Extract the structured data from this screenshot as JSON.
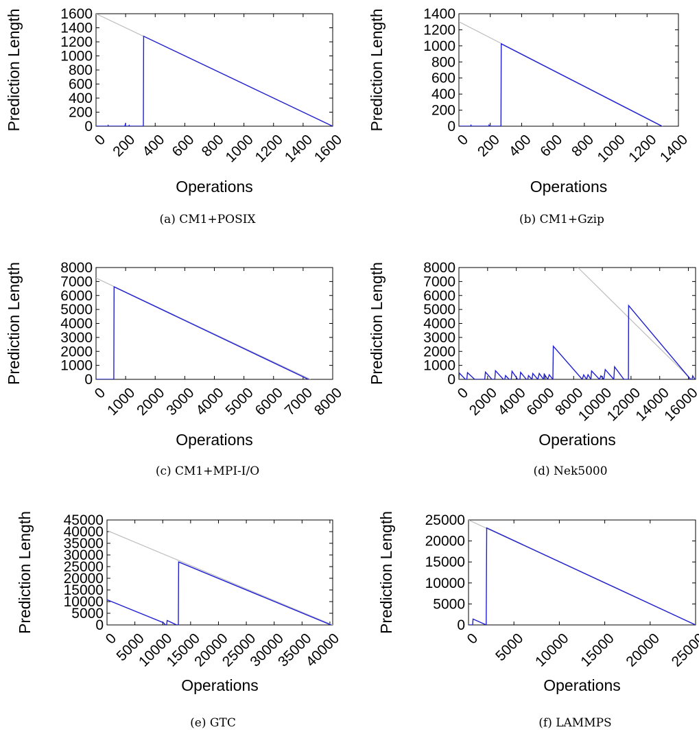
{
  "chart_data": [
    {
      "id": "a",
      "type": "line",
      "caption": "(a)  CM1+POSIX",
      "xlabel": "Operations",
      "ylabel": "Prediction Length",
      "xlim": [
        0,
        1600
      ],
      "ylim": [
        0,
        1600
      ],
      "xticks": [
        0,
        200,
        400,
        600,
        800,
        1000,
        1200,
        1400,
        1600
      ],
      "yticks": [
        0,
        200,
        400,
        600,
        800,
        1000,
        1200,
        1400,
        1600
      ],
      "colors": {
        "ideal": "#bdbdbd",
        "predicted": "#1f1fd2"
      },
      "series": [
        {
          "role": "ideal",
          "points": [
            [
              0,
              1600
            ],
            [
              1600,
              0
            ]
          ]
        },
        {
          "role": "predicted",
          "points": [
            [
              0,
              0
            ],
            [
              80,
              0
            ],
            [
              82,
              12
            ],
            [
              86,
              0
            ],
            [
              195,
              0
            ],
            [
              197,
              20
            ],
            [
              200,
              0
            ],
            [
              222,
              0
            ],
            [
              224,
              12
            ],
            [
              228,
              0
            ],
            [
              320,
              0
            ],
            [
              322,
              1280
            ],
            [
              1600,
              0
            ]
          ]
        }
      ]
    },
    {
      "id": "b",
      "type": "line",
      "caption": "(b)  CM1+Gzip",
      "xlabel": "Operations",
      "ylabel": "Prediction Length",
      "xlim": [
        0,
        1400
      ],
      "ylim": [
        0,
        1400
      ],
      "xticks": [
        0,
        200,
        400,
        600,
        800,
        1000,
        1200,
        1400
      ],
      "yticks": [
        0,
        200,
        400,
        600,
        800,
        1000,
        1200,
        1400
      ],
      "colors": {
        "ideal": "#bdbdbd",
        "predicted": "#1f1fd2"
      },
      "series": [
        {
          "role": "ideal",
          "points": [
            [
              0,
              1300
            ],
            [
              1300,
              0
            ]
          ]
        },
        {
          "role": "predicted",
          "points": [
            [
              0,
              0
            ],
            [
              75,
              0
            ],
            [
              77,
              12
            ],
            [
              80,
              0
            ],
            [
              190,
              0
            ],
            [
              192,
              14
            ],
            [
              195,
              0
            ],
            [
              268,
              0
            ],
            [
              270,
              1025
            ],
            [
              1295,
              0
            ]
          ]
        }
      ]
    },
    {
      "id": "c",
      "type": "line",
      "caption": "(c)  CM1+MPI-I/O",
      "xlabel": "Operations",
      "ylabel": "Prediction Length",
      "xlim": [
        0,
        8000
      ],
      "ylim": [
        0,
        8000
      ],
      "xticks": [
        0,
        1000,
        2000,
        3000,
        4000,
        5000,
        6000,
        7000,
        8000
      ],
      "yticks": [
        0,
        1000,
        2000,
        3000,
        4000,
        5000,
        6000,
        7000,
        8000
      ],
      "colors": {
        "ideal": "#bdbdbd",
        "predicted": "#1f1fd2"
      },
      "series": [
        {
          "role": "ideal",
          "points": [
            [
              0,
              7250
            ],
            [
              7250,
              0
            ]
          ]
        },
        {
          "role": "predicted",
          "points": [
            [
              0,
              0
            ],
            [
              600,
              0
            ],
            [
              610,
              6620
            ],
            [
              7180,
              0
            ]
          ]
        }
      ]
    },
    {
      "id": "d",
      "type": "line",
      "caption": "(d)  Nek5000",
      "xlabel": "Operations",
      "ylabel": "Prediction Length",
      "xlim": [
        0,
        16500
      ],
      "ylim": [
        0,
        8000
      ],
      "xticks": [
        0,
        2000,
        4000,
        6000,
        8000,
        10000,
        12000,
        14000,
        16000
      ],
      "yticks": [
        0,
        1000,
        2000,
        3000,
        4000,
        5000,
        6000,
        7000,
        8000
      ],
      "colors": {
        "ideal": "#bdbdbd",
        "predicted": "#1f1fd2"
      },
      "series": [
        {
          "role": "ideal",
          "points": [
            [
              8300,
              8000
            ],
            [
              16200,
              0
            ]
          ]
        },
        {
          "role": "predicted",
          "points": [
            [
              0,
              0
            ],
            [
              30,
              450
            ],
            [
              450,
              0
            ],
            [
              550,
              0
            ],
            [
              600,
              480
            ],
            [
              1100,
              0
            ],
            [
              1800,
              0
            ],
            [
              1850,
              520
            ],
            [
              2300,
              0
            ],
            [
              2500,
              0
            ],
            [
              2550,
              620
            ],
            [
              3100,
              0
            ],
            [
              3200,
              0
            ],
            [
              3250,
              270
            ],
            [
              3500,
              0
            ],
            [
              3650,
              0
            ],
            [
              3700,
              580
            ],
            [
              4100,
              0
            ],
            [
              4250,
              0
            ],
            [
              4300,
              500
            ],
            [
              4700,
              0
            ],
            [
              4800,
              0
            ],
            [
              4850,
              270
            ],
            [
              5100,
              0
            ],
            [
              5150,
              420
            ],
            [
              5500,
              0
            ],
            [
              5600,
              420
            ],
            [
              5900,
              0
            ],
            [
              5950,
              380
            ],
            [
              6200,
              0
            ],
            [
              6300,
              330
            ],
            [
              6550,
              0
            ],
            [
              6580,
              2370
            ],
            [
              8600,
              0
            ],
            [
              8700,
              320
            ],
            [
              8900,
              0
            ],
            [
              9000,
              330
            ],
            [
              9200,
              0
            ],
            [
              9250,
              600
            ],
            [
              9800,
              0
            ],
            [
              9900,
              250
            ],
            [
              10100,
              0
            ],
            [
              10200,
              700
            ],
            [
              10800,
              0
            ],
            [
              10850,
              900
            ],
            [
              11500,
              0
            ],
            [
              11820,
              0
            ],
            [
              11830,
              5280
            ],
            [
              16150,
              0
            ],
            [
              16250,
              0
            ],
            [
              16300,
              250
            ],
            [
              16450,
              0
            ]
          ]
        }
      ]
    },
    {
      "id": "e",
      "type": "line",
      "caption": "(e)  GTC",
      "xlabel": "Operations",
      "ylabel": "Prediction Length",
      "xlim": [
        0,
        40500
      ],
      "ylim": [
        0,
        45000
      ],
      "xticks": [
        0,
        5000,
        10000,
        15000,
        20000,
        25000,
        30000,
        35000,
        40000
      ],
      "yticks": [
        0,
        5000,
        10000,
        15000,
        20000,
        25000,
        30000,
        35000,
        40000,
        45000
      ],
      "colors": {
        "ideal": "#bdbdbd",
        "predicted": "#1f1fd2"
      },
      "series": [
        {
          "role": "ideal",
          "points": [
            [
              0,
              40500
            ],
            [
              40500,
              0
            ]
          ]
        },
        {
          "role": "predicted",
          "points": [
            [
              0,
              10800
            ],
            [
              10100,
              1000
            ],
            [
              10500,
              0
            ],
            [
              10700,
              0
            ],
            [
              10800,
              1900
            ],
            [
              12500,
              0
            ],
            [
              12800,
              0
            ],
            [
              12850,
              27000
            ],
            [
              40200,
              0
            ]
          ]
        }
      ]
    },
    {
      "id": "f",
      "type": "line",
      "caption": "(f)  LAMMPS",
      "xlabel": "Operations",
      "ylabel": "Prediction Length",
      "xlim": [
        0,
        25000
      ],
      "ylim": [
        0,
        25000
      ],
      "xticks": [
        0,
        5000,
        10000,
        15000,
        20000,
        25000
      ],
      "yticks": [
        0,
        5000,
        10000,
        15000,
        20000,
        25000
      ],
      "colors": {
        "ideal": "#bdbdbd",
        "predicted": "#1f1fd2"
      },
      "series": [
        {
          "role": "ideal",
          "points": [
            [
              0,
              25000
            ],
            [
              25000,
              0
            ]
          ]
        },
        {
          "role": "predicted",
          "points": [
            [
              0,
              0
            ],
            [
              450,
              0
            ],
            [
              500,
              1400
            ],
            [
              1950,
              0
            ],
            [
              2000,
              23100
            ],
            [
              25000,
              0
            ]
          ]
        }
      ]
    }
  ]
}
